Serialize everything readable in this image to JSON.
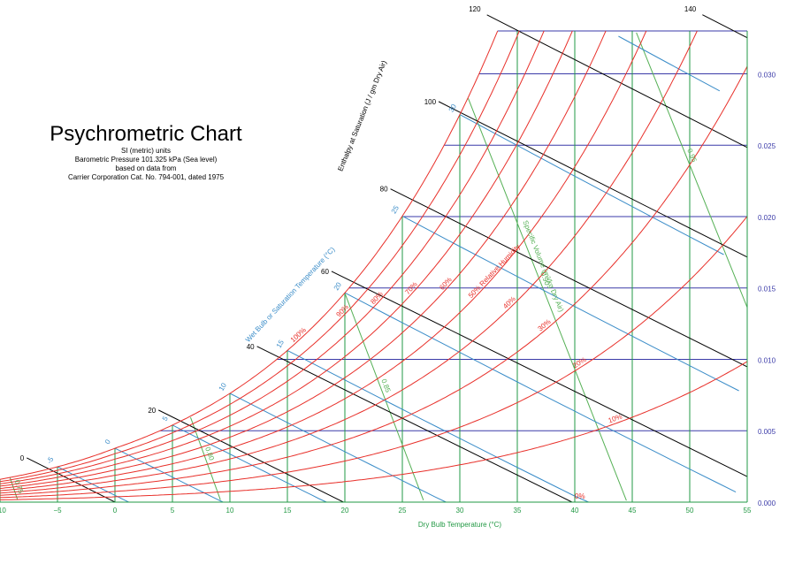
{
  "chart_data": {
    "type": "line",
    "title": "Psychrometric Chart",
    "subtitle_lines": [
      "SI (metric) units",
      "Barometric Pressure 101.325 kPa (Sea level)",
      "based on data from",
      "Carrier Corporation Cat. No. 794-001, dated 1975"
    ],
    "xlabel": "Dry Bulb Temperature (°C)",
    "xlim": [
      -10,
      55
    ],
    "ylim": [
      0,
      0.033
    ],
    "x_ticks": [
      {
        "v": -10,
        "label": "−10"
      },
      {
        "v": -5,
        "label": "−5"
      },
      {
        "v": 0,
        "label": "0"
      },
      {
        "v": 5,
        "label": "5"
      },
      {
        "v": 10,
        "label": "10"
      },
      {
        "v": 15,
        "label": "15"
      },
      {
        "v": 20,
        "label": "20"
      },
      {
        "v": 25,
        "label": "25"
      },
      {
        "v": 30,
        "label": "30"
      },
      {
        "v": 35,
        "label": "35"
      },
      {
        "v": 40,
        "label": "40"
      },
      {
        "v": 45,
        "label": "45"
      },
      {
        "v": 50,
        "label": "50"
      },
      {
        "v": 55,
        "label": "55"
      }
    ],
    "y_ticks": [
      {
        "v": 0.0,
        "label": "0.000"
      },
      {
        "v": 0.005,
        "label": "0.005"
      },
      {
        "v": 0.01,
        "label": "0.010"
      },
      {
        "v": 0.015,
        "label": "0.015"
      },
      {
        "v": 0.02,
        "label": "0.020"
      },
      {
        "v": 0.025,
        "label": "0.025"
      },
      {
        "v": 0.03,
        "label": "0.030"
      }
    ],
    "rh_curves": [
      {
        "rh": 1.0,
        "label": "100%"
      },
      {
        "rh": 0.9,
        "label": "90%"
      },
      {
        "rh": 0.8,
        "label": "80%"
      },
      {
        "rh": 0.7,
        "label": "70%"
      },
      {
        "rh": 0.6,
        "label": "60%"
      },
      {
        "rh": 0.5,
        "label": "50% Relative Humidity"
      },
      {
        "rh": 0.4,
        "label": "40%"
      },
      {
        "rh": 0.3,
        "label": "30%"
      },
      {
        "rh": 0.2,
        "label": "20%"
      },
      {
        "rh": 0.1,
        "label": "10%"
      },
      {
        "rh": 0.0,
        "label": "0%"
      }
    ],
    "wet_bulb_values": [
      -5,
      0,
      5,
      10,
      15,
      20,
      25,
      30,
      35
    ],
    "wet_bulb_axis_label": "Wet Bulb or Saturation Temperature (°C)",
    "enthalpy_values": [
      0,
      20,
      40,
      60,
      80,
      100,
      120,
      140
    ],
    "enthalpy_axis_label": "Enthalpy at Saturation (J / gm Dry Air)",
    "specific_volume_values": [
      {
        "v": 0.75,
        "label": "0.75"
      },
      {
        "v": 0.8,
        "label": "0.80"
      },
      {
        "v": 0.85,
        "label": "0.85"
      },
      {
        "v": 0.9,
        "label": "0.90"
      },
      {
        "v": 0.95,
        "label": "0.95"
      }
    ],
    "specific_volume_axis_label": "Specific Volume (m³/kg Dry Air)",
    "colors": {
      "rh": "#e8302a",
      "dry_bulb": "#229944",
      "wet_bulb": "#3a8cc8",
      "humidity_ratio": "#3a3aa8",
      "enthalpy": "#000000",
      "specific_volume": "#55b055",
      "axis_text_green": "#229944"
    }
  }
}
